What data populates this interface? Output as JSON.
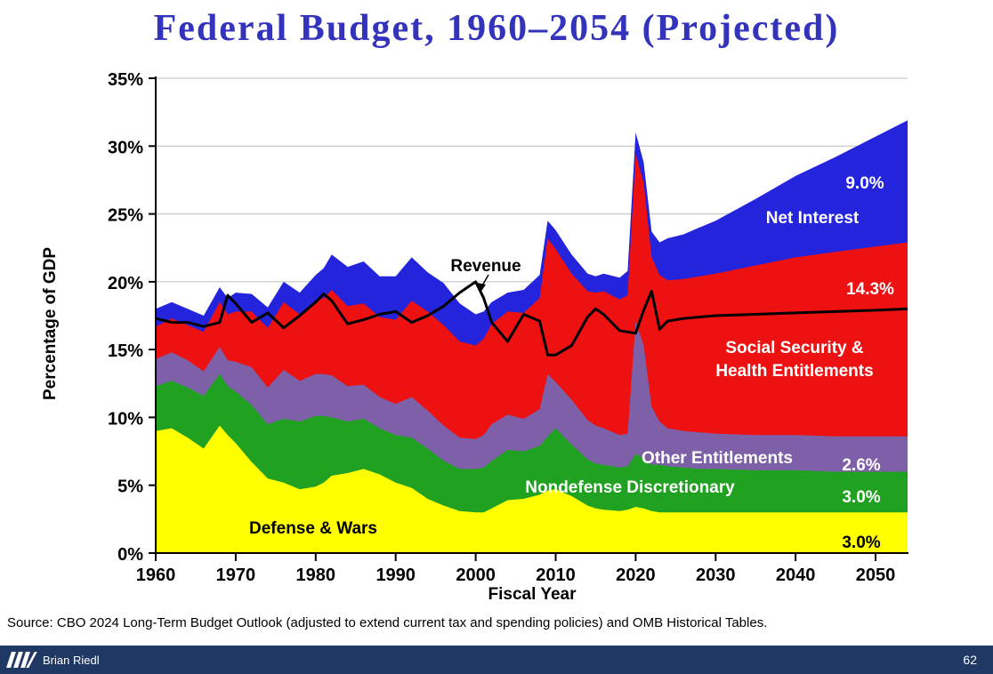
{
  "page": {
    "title": "Federal Budget, 1960–2054 (Projected)",
    "source": "Source: CBO 2024 Long-Term Budget Outlook (adjusted to extend current tax and spending policies) and OMB Historical Tables.",
    "footer": {
      "author": "Brian Riedl",
      "page_number": "62"
    }
  },
  "colors": {
    "title": "#3333bb",
    "defense": "#ffff00",
    "nondefense": "#21a121",
    "other": "#7d60a8",
    "ss_health": "#ee1111",
    "interest": "#2424dc",
    "revenue": "#000000",
    "grid": "#bdbdbd",
    "footer_bg": "#1f3864"
  },
  "annotations": {
    "revenue": "Revenue",
    "net_interest_value": "9.0%",
    "net_interest": "Net Interest",
    "ss_value": "14.3%",
    "ss_line1": "Social Security &",
    "ss_line2": "Health Entitlements",
    "other": "Other Entitlements",
    "other_value": "2.6%",
    "nondefense": "Nondefense Discretionary",
    "nondefense_value": "3.0%",
    "defense": "Defense & Wars",
    "defense_value": "3.0%"
  },
  "chart_data": {
    "type": "area",
    "stacked": true,
    "title": "Federal Budget, 1960–2054 (Projected)",
    "xlabel": "Fiscal Year",
    "ylabel": "Percentage of GDP",
    "xlim": [
      1960,
      2054
    ],
    "ylim": [
      0,
      35
    ],
    "x_ticks": [
      1960,
      1970,
      1980,
      1990,
      2000,
      2010,
      2020,
      2030,
      2040,
      2050
    ],
    "x_tick_labels": [
      "1960",
      "1970",
      "1980",
      "1990",
      "2000",
      "2010",
      "2020",
      "2030",
      "2040",
      "2050"
    ],
    "y_ticks": [
      0,
      5,
      10,
      15,
      20,
      25,
      30,
      35
    ],
    "y_tick_labels": [
      "0%",
      "5%",
      "10%",
      "15%",
      "20%",
      "25%",
      "30%",
      "35%"
    ],
    "grid": "horizontal",
    "years": [
      1960,
      1962,
      1964,
      1966,
      1968,
      1969,
      1970,
      1972,
      1974,
      1976,
      1978,
      1980,
      1981,
      1982,
      1984,
      1986,
      1988,
      1990,
      1992,
      1994,
      1996,
      1998,
      2000,
      2001,
      2002,
      2004,
      2006,
      2008,
      2009,
      2010,
      2012,
      2014,
      2015,
      2016,
      2018,
      2019,
      2020,
      2021,
      2022,
      2023,
      2024,
      2026,
      2028,
      2030,
      2035,
      2040,
      2045,
      2050,
      2054
    ],
    "series": [
      {
        "name": "Defense & Wars",
        "color_key": "defense",
        "final_value_label": "3.0%",
        "values": [
          9.0,
          9.2,
          8.5,
          7.7,
          9.4,
          8.7,
          8.1,
          6.7,
          5.5,
          5.2,
          4.7,
          4.9,
          5.2,
          5.7,
          5.9,
          6.2,
          5.8,
          5.2,
          4.8,
          4.0,
          3.5,
          3.1,
          3.0,
          3.0,
          3.3,
          3.9,
          4.0,
          4.3,
          4.6,
          4.7,
          4.2,
          3.5,
          3.3,
          3.2,
          3.1,
          3.2,
          3.4,
          3.3,
          3.1,
          3.0,
          3.0,
          3.0,
          3.0,
          3.0,
          3.0,
          3.0,
          3.0,
          3.0,
          3.0
        ]
      },
      {
        "name": "Nondefense Discretionary",
        "color_key": "nondefense",
        "final_value_label": "3.0%",
        "values": [
          3.3,
          3.5,
          3.7,
          3.9,
          3.8,
          3.6,
          3.8,
          4.2,
          4.0,
          4.7,
          5.0,
          5.2,
          4.9,
          4.3,
          3.8,
          3.7,
          3.4,
          3.5,
          3.7,
          3.7,
          3.3,
          3.1,
          3.2,
          3.3,
          3.5,
          3.7,
          3.5,
          3.6,
          4.0,
          4.5,
          3.8,
          3.4,
          3.3,
          3.3,
          3.2,
          3.2,
          3.9,
          3.7,
          3.4,
          3.5,
          3.4,
          3.3,
          3.2,
          3.2,
          3.1,
          3.1,
          3.0,
          3.0,
          3.0
        ]
      },
      {
        "name": "Other Entitlements",
        "color_key": "other",
        "final_value_label": "2.6%",
        "values": [
          2.0,
          2.1,
          2.0,
          1.8,
          2.0,
          1.9,
          2.2,
          2.8,
          2.7,
          3.6,
          3.0,
          3.1,
          3.1,
          3.1,
          2.6,
          2.5,
          2.3,
          2.3,
          3.0,
          2.8,
          2.6,
          2.3,
          2.2,
          2.4,
          2.7,
          2.6,
          2.4,
          2.7,
          4.6,
          3.4,
          3.3,
          2.9,
          2.8,
          2.7,
          2.4,
          2.4,
          9.8,
          8.3,
          4.3,
          3.2,
          2.8,
          2.7,
          2.7,
          2.6,
          2.6,
          2.6,
          2.6,
          2.6,
          2.6
        ]
      },
      {
        "name": "Social Security & Health Entitlements",
        "color_key": "ss_health",
        "final_value_label": "14.3%",
        "values": [
          2.4,
          2.5,
          2.6,
          2.9,
          3.3,
          3.4,
          3.7,
          4.1,
          4.4,
          5.0,
          4.9,
          5.4,
          5.6,
          6.3,
          5.9,
          6.0,
          5.9,
          6.2,
          7.1,
          7.3,
          7.4,
          7.1,
          6.9,
          7.1,
          7.4,
          7.6,
          7.8,
          8.2,
          10.0,
          9.8,
          9.3,
          9.5,
          9.8,
          10.1,
          10.0,
          10.2,
          12.3,
          12.0,
          11.0,
          10.8,
          10.9,
          11.2,
          11.5,
          11.8,
          12.5,
          13.1,
          13.6,
          14.0,
          14.3
        ]
      },
      {
        "name": "Net Interest",
        "color_key": "interest",
        "final_value_label": "9.0%",
        "values": [
          1.3,
          1.2,
          1.2,
          1.2,
          1.1,
          1.2,
          1.4,
          1.3,
          1.5,
          1.5,
          1.6,
          1.9,
          2.2,
          2.6,
          2.9,
          3.1,
          3.0,
          3.2,
          3.2,
          2.9,
          3.1,
          2.8,
          2.3,
          2.0,
          1.6,
          1.4,
          1.7,
          1.7,
          1.3,
          1.4,
          1.4,
          1.3,
          1.2,
          1.3,
          1.6,
          1.8,
          1.6,
          1.5,
          1.9,
          2.4,
          3.1,
          3.3,
          3.6,
          3.9,
          4.9,
          6.0,
          7.0,
          8.1,
          9.0
        ]
      }
    ],
    "line_series": {
      "name": "Revenue",
      "values": [
        17.3,
        17.0,
        17.0,
        16.7,
        17.0,
        19.0,
        18.4,
        17.0,
        17.7,
        16.6,
        17.5,
        18.5,
        19.1,
        18.6,
        16.9,
        17.2,
        17.6,
        17.8,
        17.0,
        17.5,
        18.2,
        19.2,
        20.0,
        18.8,
        17.0,
        15.6,
        17.6,
        17.1,
        14.6,
        14.6,
        15.3,
        17.4,
        18.0,
        17.6,
        16.4,
        16.3,
        16.2,
        17.9,
        19.3,
        16.5,
        17.1,
        17.3,
        17.4,
        17.5,
        17.6,
        17.7,
        17.8,
        17.9,
        18.0
      ]
    }
  }
}
